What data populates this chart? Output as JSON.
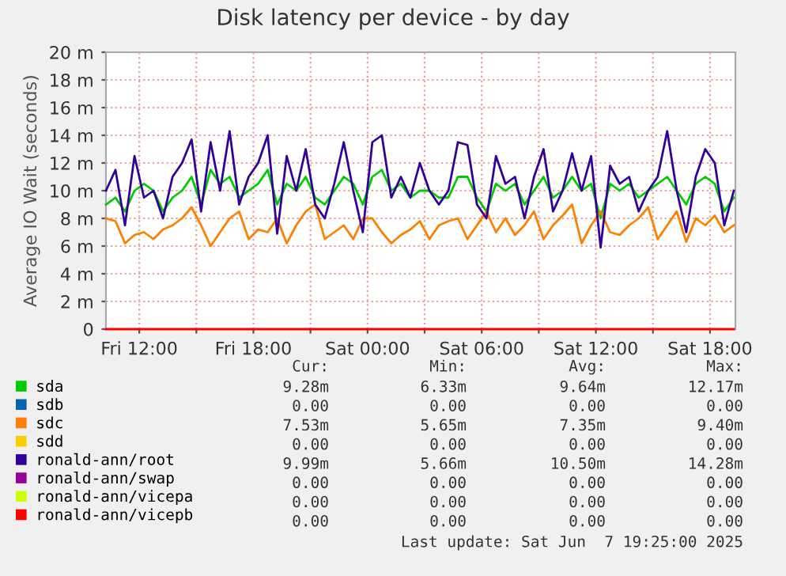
{
  "chart_data": {
    "type": "line",
    "title": "Disk latency per device - by day",
    "ylabel": "Average IO Wait (seconds)",
    "x": [
      "2025-06-06T10:15",
      "2025-06-06T10:45",
      "2025-06-06T11:15",
      "2025-06-06T11:45",
      "2025-06-06T12:15",
      "2025-06-06T12:45",
      "2025-06-06T13:15",
      "2025-06-06T13:45",
      "2025-06-06T14:15",
      "2025-06-06T14:45",
      "2025-06-06T15:15",
      "2025-06-06T15:45",
      "2025-06-06T16:15",
      "2025-06-06T16:45",
      "2025-06-06T17:15",
      "2025-06-06T17:45",
      "2025-06-06T18:15",
      "2025-06-06T18:45",
      "2025-06-06T19:15",
      "2025-06-06T19:45",
      "2025-06-06T20:15",
      "2025-06-06T20:45",
      "2025-06-06T21:15",
      "2025-06-06T21:45",
      "2025-06-06T22:15",
      "2025-06-06T22:45",
      "2025-06-06T23:15",
      "2025-06-06T23:45",
      "2025-06-07T00:15",
      "2025-06-07T00:45",
      "2025-06-07T01:15",
      "2025-06-07T01:45",
      "2025-06-07T02:15",
      "2025-06-07T02:45",
      "2025-06-07T03:15",
      "2025-06-07T03:45",
      "2025-06-07T04:15",
      "2025-06-07T04:45",
      "2025-06-07T05:15",
      "2025-06-07T05:45",
      "2025-06-07T06:15",
      "2025-06-07T06:45",
      "2025-06-07T07:15",
      "2025-06-07T07:45",
      "2025-06-07T08:15",
      "2025-06-07T08:45",
      "2025-06-07T09:15",
      "2025-06-07T09:45",
      "2025-06-07T10:15",
      "2025-06-07T10:45",
      "2025-06-07T11:15",
      "2025-06-07T11:45",
      "2025-06-07T12:15",
      "2025-06-07T12:45",
      "2025-06-07T13:15",
      "2025-06-07T13:45",
      "2025-06-07T14:15",
      "2025-06-07T14:45",
      "2025-06-07T15:15",
      "2025-06-07T15:45",
      "2025-06-07T16:15",
      "2025-06-07T16:45",
      "2025-06-07T17:15",
      "2025-06-07T17:45",
      "2025-06-07T18:15",
      "2025-06-07T18:45",
      "2025-06-07T19:15"
    ],
    "series": [
      {
        "name": "sda",
        "color": "#00cc00",
        "values": [
          9,
          9.5,
          8.5,
          10,
          10.5,
          10,
          8.5,
          9.5,
          10,
          11,
          9,
          11.5,
          10.5,
          11,
          9.5,
          10,
          10.5,
          11.5,
          9,
          10.5,
          10,
          11,
          9.5,
          9,
          10,
          11,
          10.5,
          9,
          11,
          11.5,
          10,
          10.5,
          9.5,
          10,
          10,
          9.5,
          9.5,
          11,
          11,
          9.5,
          8.5,
          10.5,
          10,
          10.5,
          9,
          10,
          11,
          9.5,
          10,
          11,
          10,
          10.5,
          8,
          10.5,
          10,
          10.5,
          9.5,
          10,
          10.5,
          11,
          10,
          9,
          10.5,
          11,
          10.5,
          8.5,
          9.5
        ]
      },
      {
        "name": "sdb",
        "color": "#0066b3",
        "values": [
          null,
          null,
          null,
          null,
          null,
          null,
          null,
          null,
          null,
          null,
          null,
          null,
          null,
          null,
          null,
          null,
          null,
          null,
          null,
          null,
          null,
          null,
          null,
          null,
          null,
          null,
          null,
          null,
          null,
          null,
          null,
          null,
          null,
          null,
          null,
          null,
          null,
          null,
          null,
          null,
          null,
          null,
          null,
          null,
          null,
          null,
          null,
          null,
          null,
          null,
          null,
          null,
          null,
          null,
          null,
          null,
          null,
          null,
          null,
          null,
          null,
          null,
          null,
          null,
          null,
          null,
          null
        ]
      },
      {
        "name": "sdc",
        "color": "#ff8000",
        "values": [
          8,
          7.8,
          6.2,
          6.8,
          7,
          6.5,
          7.2,
          7.5,
          8,
          8.8,
          7.5,
          6,
          7,
          8,
          8.5,
          6.5,
          7.2,
          7,
          8,
          6.2,
          7.5,
          8.5,
          9,
          6.5,
          7,
          7.5,
          6.5,
          8,
          8,
          7,
          6.2,
          6.8,
          7.2,
          7.8,
          6.5,
          7.5,
          7.8,
          8,
          6.5,
          7.5,
          8.5,
          7,
          8,
          6.8,
          7.5,
          8.5,
          6.5,
          7.5,
          8.2,
          9,
          6.2,
          7.5,
          8.5,
          7,
          6.8,
          7.5,
          8,
          8.8,
          6.5,
          7.5,
          8.5,
          6.3,
          8,
          7.5,
          8.2,
          7,
          7.5
        ]
      },
      {
        "name": "sdd",
        "color": "#ffcc00",
        "values": [
          null,
          null,
          null,
          null,
          null,
          null,
          null,
          null,
          null,
          null,
          null,
          null,
          null,
          null,
          null,
          null,
          null,
          null,
          null,
          null,
          null,
          null,
          null,
          null,
          null,
          null,
          null,
          null,
          null,
          null,
          null,
          null,
          null,
          null,
          null,
          null,
          null,
          null,
          null,
          null,
          null,
          null,
          null,
          null,
          null,
          null,
          null,
          null,
          null,
          null,
          null,
          null,
          null,
          null,
          null,
          null,
          null,
          null,
          null,
          null,
          null,
          null,
          null,
          null,
          null,
          null,
          null
        ]
      },
      {
        "name": "ronald-ann/root",
        "color": "#330099",
        "values": [
          10,
          11.5,
          7.5,
          12.5,
          9.5,
          10,
          8,
          11,
          12,
          13.7,
          8.5,
          13.5,
          10,
          14.3,
          9,
          11,
          12,
          14,
          6.9,
          12.5,
          10,
          13,
          9,
          8,
          10.5,
          13.5,
          10,
          7,
          13.5,
          14,
          9.5,
          11,
          9.5,
          12,
          10,
          9,
          10,
          13.5,
          13.3,
          9,
          8,
          12.5,
          10.5,
          11,
          8,
          11,
          13,
          8.5,
          10,
          12.7,
          10,
          12.5,
          5.9,
          11.8,
          10.5,
          11,
          8.5,
          10,
          11,
          14.3,
          10,
          7,
          11,
          13,
          12,
          7.5,
          10
        ]
      },
      {
        "name": "ronald-ann/swap",
        "color": "#990099",
        "values": [
          null,
          null,
          null,
          null,
          null,
          null,
          null,
          null,
          null,
          null,
          null,
          null,
          null,
          null,
          null,
          null,
          null,
          null,
          null,
          null,
          null,
          null,
          null,
          null,
          null,
          null,
          null,
          null,
          null,
          null,
          null,
          null,
          null,
          null,
          null,
          null,
          null,
          null,
          null,
          null,
          null,
          null,
          null,
          null,
          null,
          null,
          null,
          null,
          null,
          null,
          null,
          null,
          null,
          null,
          null,
          null,
          null,
          null,
          null,
          null,
          null,
          null,
          null,
          null,
          null,
          null,
          null
        ]
      },
      {
        "name": "ronald-ann/vicepa",
        "color": "#ccff00",
        "values": [
          null,
          null,
          null,
          null,
          null,
          null,
          null,
          null,
          null,
          null,
          null,
          null,
          null,
          null,
          null,
          null,
          null,
          null,
          null,
          null,
          null,
          null,
          null,
          null,
          null,
          null,
          null,
          null,
          null,
          null,
          null,
          null,
          null,
          null,
          null,
          null,
          null,
          null,
          null,
          null,
          null,
          null,
          null,
          null,
          null,
          null,
          null,
          null,
          null,
          null,
          null,
          null,
          null,
          null,
          null,
          null,
          null,
          null,
          null,
          null,
          null,
          null,
          null,
          null,
          null,
          null,
          null
        ]
      },
      {
        "name": "ronald-ann/vicepb",
        "color": "#ff0000",
        "x": [
          "2025-06-06T10:15",
          "2025-06-07T19:15"
        ],
        "values": [
          0,
          0
        ]
      }
    ],
    "xlim": [
      "2025-06-06T10:15",
      "2025-06-07T19:20"
    ],
    "xticks": [
      {
        "value": "2025-06-06T12:00",
        "label": "Fri 12:00"
      },
      {
        "value": "2025-06-06T15:00",
        "label": null
      },
      {
        "value": "2025-06-06T18:00",
        "label": "Fri 18:00"
      },
      {
        "value": "2025-06-06T21:00",
        "label": null
      },
      {
        "value": "2025-06-07T00:00",
        "label": "Sat 00:00"
      },
      {
        "value": "2025-06-07T03:00",
        "label": null
      },
      {
        "value": "2025-06-07T06:00",
        "label": "Sat 06:00"
      },
      {
        "value": "2025-06-07T09:00",
        "label": null
      },
      {
        "value": "2025-06-07T12:00",
        "label": "Sat 12:00"
      },
      {
        "value": "2025-06-07T15:00",
        "label": null
      },
      {
        "value": "2025-06-07T18:00",
        "label": "Sat 18:00"
      }
    ],
    "ylim": [
      0,
      20
    ],
    "yticks": [
      0,
      {
        "value": 2,
        "label": "2 m"
      },
      {
        "value": 4,
        "label": "4 m"
      },
      {
        "value": 6,
        "label": "6 m"
      },
      {
        "value": 8,
        "label": "8 m"
      },
      {
        "value": 10,
        "label": "10 m"
      },
      {
        "value": 12,
        "label": "12 m"
      },
      {
        "value": 14,
        "label": "14 m"
      },
      {
        "value": 16,
        "label": "16 m"
      },
      {
        "value": 18,
        "label": "18 m"
      },
      {
        "value": 20,
        "label": "20 m"
      }
    ],
    "grid": true,
    "legend": "bottom",
    "line_style": "solid",
    "marker": "none",
    "annotations": [
      "Cur:",
      "Min:",
      "Avg:",
      "Max:",
      "9.28m",
      "6.33m",
      "9.64m",
      "12.17m",
      "0.00",
      "0.00",
      "0.00",
      "0.00",
      "7.53m",
      "5.65m",
      "7.35m",
      "9.40m",
      "0.00",
      "0.00",
      "0.00",
      "0.00",
      "9.99m",
      "5.66m",
      "10.50m",
      "14.28m",
      "0.00",
      "0.00",
      "0.00",
      "0.00",
      "0.00",
      "0.00",
      "0.00",
      "0.00",
      "0.00",
      "0.00",
      "0.00",
      "0.00",
      "Last update: Sat Jun  7 19:25:00 2025"
    ]
  }
}
